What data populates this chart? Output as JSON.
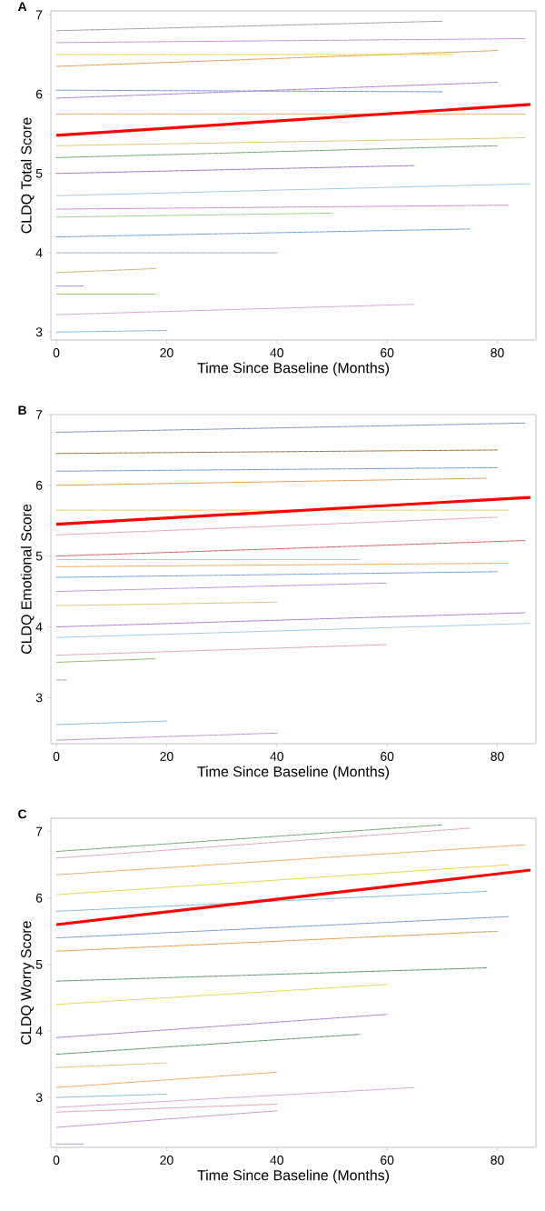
{
  "chart_data": [
    {
      "type": "line",
      "title": "A",
      "xlabel": "Time Since Baseline (Months)",
      "ylabel": "CLDQ Total Score",
      "xlim": [
        -1,
        87
      ],
      "ylim": [
        2.9,
        7.05
      ],
      "xticks": [
        0,
        20,
        40,
        60,
        80
      ],
      "yticks": [
        3,
        4,
        5,
        6,
        7
      ],
      "grid": false,
      "series": [
        {
          "color": "#9ecae9",
          "line_style": "solid",
          "x": [
            0,
            86
          ],
          "values": [
            4.72,
            4.87
          ]
        },
        {
          "color": "#8cc26b",
          "line_style": "solid",
          "x": [
            0,
            18
          ],
          "values": [
            3.48,
            3.48
          ]
        },
        {
          "color": "#7fb8e0",
          "line_style": "dashed",
          "x": [
            0,
            20
          ],
          "values": [
            3.0,
            3.02
          ]
        },
        {
          "color": "#d9a0d9",
          "line_style": "dashed",
          "x": [
            0,
            65
          ],
          "values": [
            3.22,
            3.35
          ]
        },
        {
          "color": "#a0a0a0",
          "line_style": "dashed",
          "x": [
            0,
            70
          ],
          "values": [
            6.8,
            6.92
          ]
        },
        {
          "color": "#c68fd6",
          "line_style": "dashed",
          "x": [
            0,
            85
          ],
          "values": [
            6.65,
            6.7
          ]
        },
        {
          "color": "#e39a4d",
          "line_style": "dashed",
          "x": [
            0,
            80
          ],
          "values": [
            6.35,
            6.55
          ]
        },
        {
          "color": "#e8d34a",
          "line_style": "dashed",
          "x": [
            0,
            72
          ],
          "values": [
            6.5,
            6.5
          ]
        },
        {
          "color": "#6f9bd1",
          "line_style": "dashed",
          "x": [
            0,
            70
          ],
          "values": [
            6.05,
            6.03
          ]
        },
        {
          "color": "#b27ad0",
          "line_style": "dashed",
          "x": [
            0,
            80
          ],
          "values": [
            5.95,
            6.15
          ]
        },
        {
          "color": "#f0a860",
          "line_style": "dashed",
          "x": [
            0,
            85
          ],
          "values": [
            5.75,
            5.75
          ]
        },
        {
          "color": "#6aa86a",
          "line_style": "dashed",
          "x": [
            0,
            80
          ],
          "values": [
            5.2,
            5.35
          ]
        },
        {
          "color": "#e0c070",
          "line_style": "dashed",
          "x": [
            0,
            85
          ],
          "values": [
            5.35,
            5.45
          ]
        },
        {
          "color": "#a070c0",
          "line_style": "dashed",
          "x": [
            0,
            65
          ],
          "values": [
            5.0,
            5.1
          ]
        },
        {
          "color": "#d08ad0",
          "line_style": "dashed",
          "x": [
            0,
            82
          ],
          "values": [
            4.55,
            4.6
          ]
        },
        {
          "color": "#9ad08a",
          "line_style": "dashed",
          "x": [
            0,
            50
          ],
          "values": [
            4.45,
            4.5
          ]
        },
        {
          "color": "#6fa0d8",
          "line_style": "dashed",
          "x": [
            0,
            75
          ],
          "values": [
            4.2,
            4.3
          ]
        },
        {
          "color": "#8fb0d8",
          "line_style": "dashed",
          "x": [
            0,
            40
          ],
          "values": [
            4.0,
            4.0
          ]
        },
        {
          "color": "#d8b070",
          "line_style": "dashed",
          "x": [
            0,
            18
          ],
          "values": [
            3.75,
            3.8
          ]
        },
        {
          "color": "#9090d0",
          "line_style": "dashed",
          "x": [
            0,
            5
          ],
          "values": [
            3.58,
            3.58
          ]
        },
        {
          "color": "#ff0000",
          "line_style": "solid",
          "x": [
            0,
            86
          ],
          "values": [
            5.48,
            5.87
          ]
        }
      ]
    },
    {
      "type": "line",
      "title": "B",
      "xlabel": "Time Since Baseline (Months)",
      "ylabel": "CLDQ Emotional Score",
      "xlim": [
        -1,
        87
      ],
      "ylim": [
        2.35,
        7.0
      ],
      "xticks": [
        0,
        20,
        40,
        60,
        80
      ],
      "yticks": [
        3,
        4,
        5,
        6,
        7
      ],
      "grid": false,
      "series": [
        {
          "color": "#9ecae9",
          "line_style": "solid",
          "x": [
            0,
            86
          ],
          "values": [
            3.85,
            4.05
          ]
        },
        {
          "color": "#c68fd6",
          "line_style": "dashed",
          "x": [
            0,
            40
          ],
          "values": [
            2.4,
            2.5
          ]
        },
        {
          "color": "#7fb8e0",
          "line_style": "dashed",
          "x": [
            0,
            20
          ],
          "values": [
            2.62,
            2.67
          ]
        },
        {
          "color": "#a0a0d0",
          "line_style": "dashed",
          "x": [
            0,
            2
          ],
          "values": [
            3.25,
            3.25
          ]
        },
        {
          "color": "#8cc26b",
          "line_style": "solid",
          "x": [
            0,
            18
          ],
          "values": [
            3.5,
            3.55
          ]
        },
        {
          "color": "#e0a0c0",
          "line_style": "dashed",
          "x": [
            0,
            60
          ],
          "values": [
            3.6,
            3.75
          ]
        },
        {
          "color": "#b27ad0",
          "line_style": "dashed",
          "x": [
            0,
            85
          ],
          "values": [
            4.0,
            4.2
          ]
        },
        {
          "color": "#e0c070",
          "line_style": "dashed",
          "x": [
            0,
            40
          ],
          "values": [
            4.3,
            4.35
          ]
        },
        {
          "color": "#c090e0",
          "line_style": "dashed",
          "x": [
            0,
            60
          ],
          "values": [
            4.5,
            4.62
          ]
        },
        {
          "color": "#6fa0d8",
          "line_style": "dashed",
          "x": [
            0,
            80
          ],
          "values": [
            4.7,
            4.78
          ]
        },
        {
          "color": "#f0a860",
          "line_style": "dashed",
          "x": [
            0,
            82
          ],
          "values": [
            4.85,
            4.9
          ]
        },
        {
          "color": "#9ecae9",
          "line_style": "solid",
          "x": [
            0,
            55
          ],
          "values": [
            4.95,
            4.95
          ]
        },
        {
          "color": "#d06060",
          "line_style": "dashed",
          "x": [
            0,
            85
          ],
          "values": [
            5.0,
            5.22
          ]
        },
        {
          "color": "#e8a0b0",
          "line_style": "dashed",
          "x": [
            0,
            80
          ],
          "values": [
            5.3,
            5.55
          ]
        },
        {
          "color": "#e8d34a",
          "line_style": "dashed",
          "x": [
            0,
            82
          ],
          "values": [
            5.65,
            5.65
          ]
        },
        {
          "color": "#e39a4d",
          "line_style": "dashed",
          "x": [
            0,
            78
          ],
          "values": [
            6.0,
            6.1
          ]
        },
        {
          "color": "#6f9bd1",
          "line_style": "dashed",
          "x": [
            0,
            80
          ],
          "values": [
            6.2,
            6.25
          ]
        },
        {
          "color": "#a0703a",
          "line_style": "dashed",
          "x": [
            0,
            80
          ],
          "values": [
            6.45,
            6.5
          ]
        },
        {
          "color": "#8090c0",
          "line_style": "dashed",
          "x": [
            0,
            85
          ],
          "values": [
            6.75,
            6.88
          ]
        },
        {
          "color": "#ff0000",
          "line_style": "solid",
          "x": [
            0,
            86
          ],
          "values": [
            5.45,
            5.83
          ]
        }
      ]
    },
    {
      "type": "line",
      "title": "C",
      "xlabel": "Time Since Baseline (Months)",
      "ylabel": "CLDQ Worry Score",
      "xlim": [
        -1,
        87
      ],
      "ylim": [
        2.25,
        7.2
      ],
      "xticks": [
        0,
        20,
        40,
        60,
        80
      ],
      "yticks": [
        3,
        4,
        5,
        6,
        7
      ],
      "grid": false,
      "series": [
        {
          "color": "#a0a0d0",
          "line_style": "dashed",
          "x": [
            0,
            5
          ],
          "values": [
            2.3,
            2.3
          ]
        },
        {
          "color": "#c68fd6",
          "line_style": "dashed",
          "x": [
            0,
            40
          ],
          "values": [
            2.55,
            2.8
          ]
        },
        {
          "color": "#e0a0c0",
          "line_style": "dashed",
          "x": [
            0,
            40
          ],
          "values": [
            2.78,
            2.9
          ]
        },
        {
          "color": "#7fb8e0",
          "line_style": "dashed",
          "x": [
            0,
            20
          ],
          "values": [
            3.0,
            3.05
          ]
        },
        {
          "color": "#f0a860",
          "line_style": "dashed",
          "x": [
            0,
            40
          ],
          "values": [
            3.15,
            3.38
          ]
        },
        {
          "color": "#d9a0d9",
          "line_style": "dashed",
          "x": [
            0,
            65
          ],
          "values": [
            2.85,
            3.15
          ]
        },
        {
          "color": "#e0c070",
          "line_style": "dashed",
          "x": [
            0,
            20
          ],
          "values": [
            3.45,
            3.52
          ]
        },
        {
          "color": "#5a9a6a",
          "line_style": "dashed",
          "x": [
            0,
            55
          ],
          "values": [
            3.65,
            3.95
          ]
        },
        {
          "color": "#b27ad0",
          "line_style": "dashed",
          "x": [
            0,
            60
          ],
          "values": [
            3.9,
            4.25
          ]
        },
        {
          "color": "#e8d34a",
          "line_style": "dashed",
          "x": [
            0,
            60
          ],
          "values": [
            4.4,
            4.7
          ]
        },
        {
          "color": "#5a9a6a",
          "line_style": "dashed",
          "x": [
            0,
            78
          ],
          "values": [
            4.75,
            4.95
          ]
        },
        {
          "color": "#e39a4d",
          "line_style": "dashed",
          "x": [
            0,
            80
          ],
          "values": [
            5.2,
            5.5
          ]
        },
        {
          "color": "#6f9bd1",
          "line_style": "dashed",
          "x": [
            0,
            82
          ],
          "values": [
            5.4,
            5.72
          ]
        },
        {
          "color": "#7fb8e0",
          "line_style": "dashed",
          "x": [
            0,
            78
          ],
          "values": [
            5.8,
            6.1
          ]
        },
        {
          "color": "#e8d34a",
          "line_style": "solid",
          "x": [
            0,
            82
          ],
          "values": [
            6.05,
            6.5
          ]
        },
        {
          "color": "#f0a860",
          "line_style": "dashed",
          "x": [
            0,
            85
          ],
          "values": [
            6.35,
            6.8
          ]
        },
        {
          "color": "#e0a0c0",
          "line_style": "dashed",
          "x": [
            0,
            75
          ],
          "values": [
            6.6,
            7.05
          ]
        },
        {
          "color": "#6aa86a",
          "line_style": "dashed",
          "x": [
            0,
            70
          ],
          "values": [
            6.7,
            7.1
          ]
        },
        {
          "color": "#ff0000",
          "line_style": "solid",
          "x": [
            0,
            86
          ],
          "values": [
            5.6,
            6.42
          ]
        }
      ]
    }
  ]
}
